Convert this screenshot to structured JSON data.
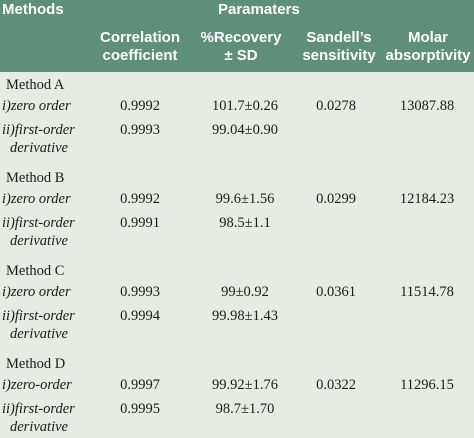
{
  "header": {
    "methods": "Methods",
    "parameters": "Paramaters",
    "columns": [
      [
        "Correlation",
        "coefficient"
      ],
      [
        "%Recovery",
        "± SD"
      ],
      [
        "Sandell’s",
        "sensitivity"
      ],
      [
        "Molar",
        "absorptivity"
      ]
    ]
  },
  "groups": [
    {
      "label": "Method A",
      "rows": [
        {
          "sub1": "i)zero order",
          "sub2": "",
          "corr": "0.9992",
          "recovery": "101.7±0.26",
          "sandell": "0.0278",
          "molar": "13087.88"
        },
        {
          "sub1": "ii)first-order",
          "sub2": "derivative",
          "corr": "0.9993",
          "recovery": "99.04±0.90",
          "sandell": "",
          "molar": ""
        }
      ]
    },
    {
      "label": "Method B",
      "rows": [
        {
          "sub1": "i)zero order",
          "sub2": "",
          "corr": "0.9992",
          "recovery": "99.6±1.56",
          "sandell": "0.0299",
          "molar": "12184.23"
        },
        {
          "sub1": "ii)first-order",
          "sub2": "derivative",
          "corr": "0.9991",
          "recovery": "98.5±1.1",
          "sandell": "",
          "molar": ""
        }
      ]
    },
    {
      "label": "Method C",
      "rows": [
        {
          "sub1": "i)zero order",
          "sub2": "",
          "corr": "0.9993",
          "recovery": "99±0.92",
          "sandell": "0.0361",
          "molar": "11514.78"
        },
        {
          "sub1": "ii)first-order",
          "sub2": "derivative",
          "corr": "0.9994",
          "recovery": "99.98±1.43",
          "sandell": "",
          "molar": ""
        }
      ]
    },
    {
      "label": "Method D",
      "rows": [
        {
          "sub1": "i)zero-order",
          "sub2": "",
          "corr": "0.9997",
          "recovery": "99.92±1.76",
          "sandell": "0.0322",
          "molar": "11296.15"
        },
        {
          "sub1": "ii)first-order",
          "sub2": "derivative",
          "corr": "0.9995",
          "recovery": "98.7±1.70",
          "sandell": "",
          "molar": ""
        }
      ]
    }
  ]
}
